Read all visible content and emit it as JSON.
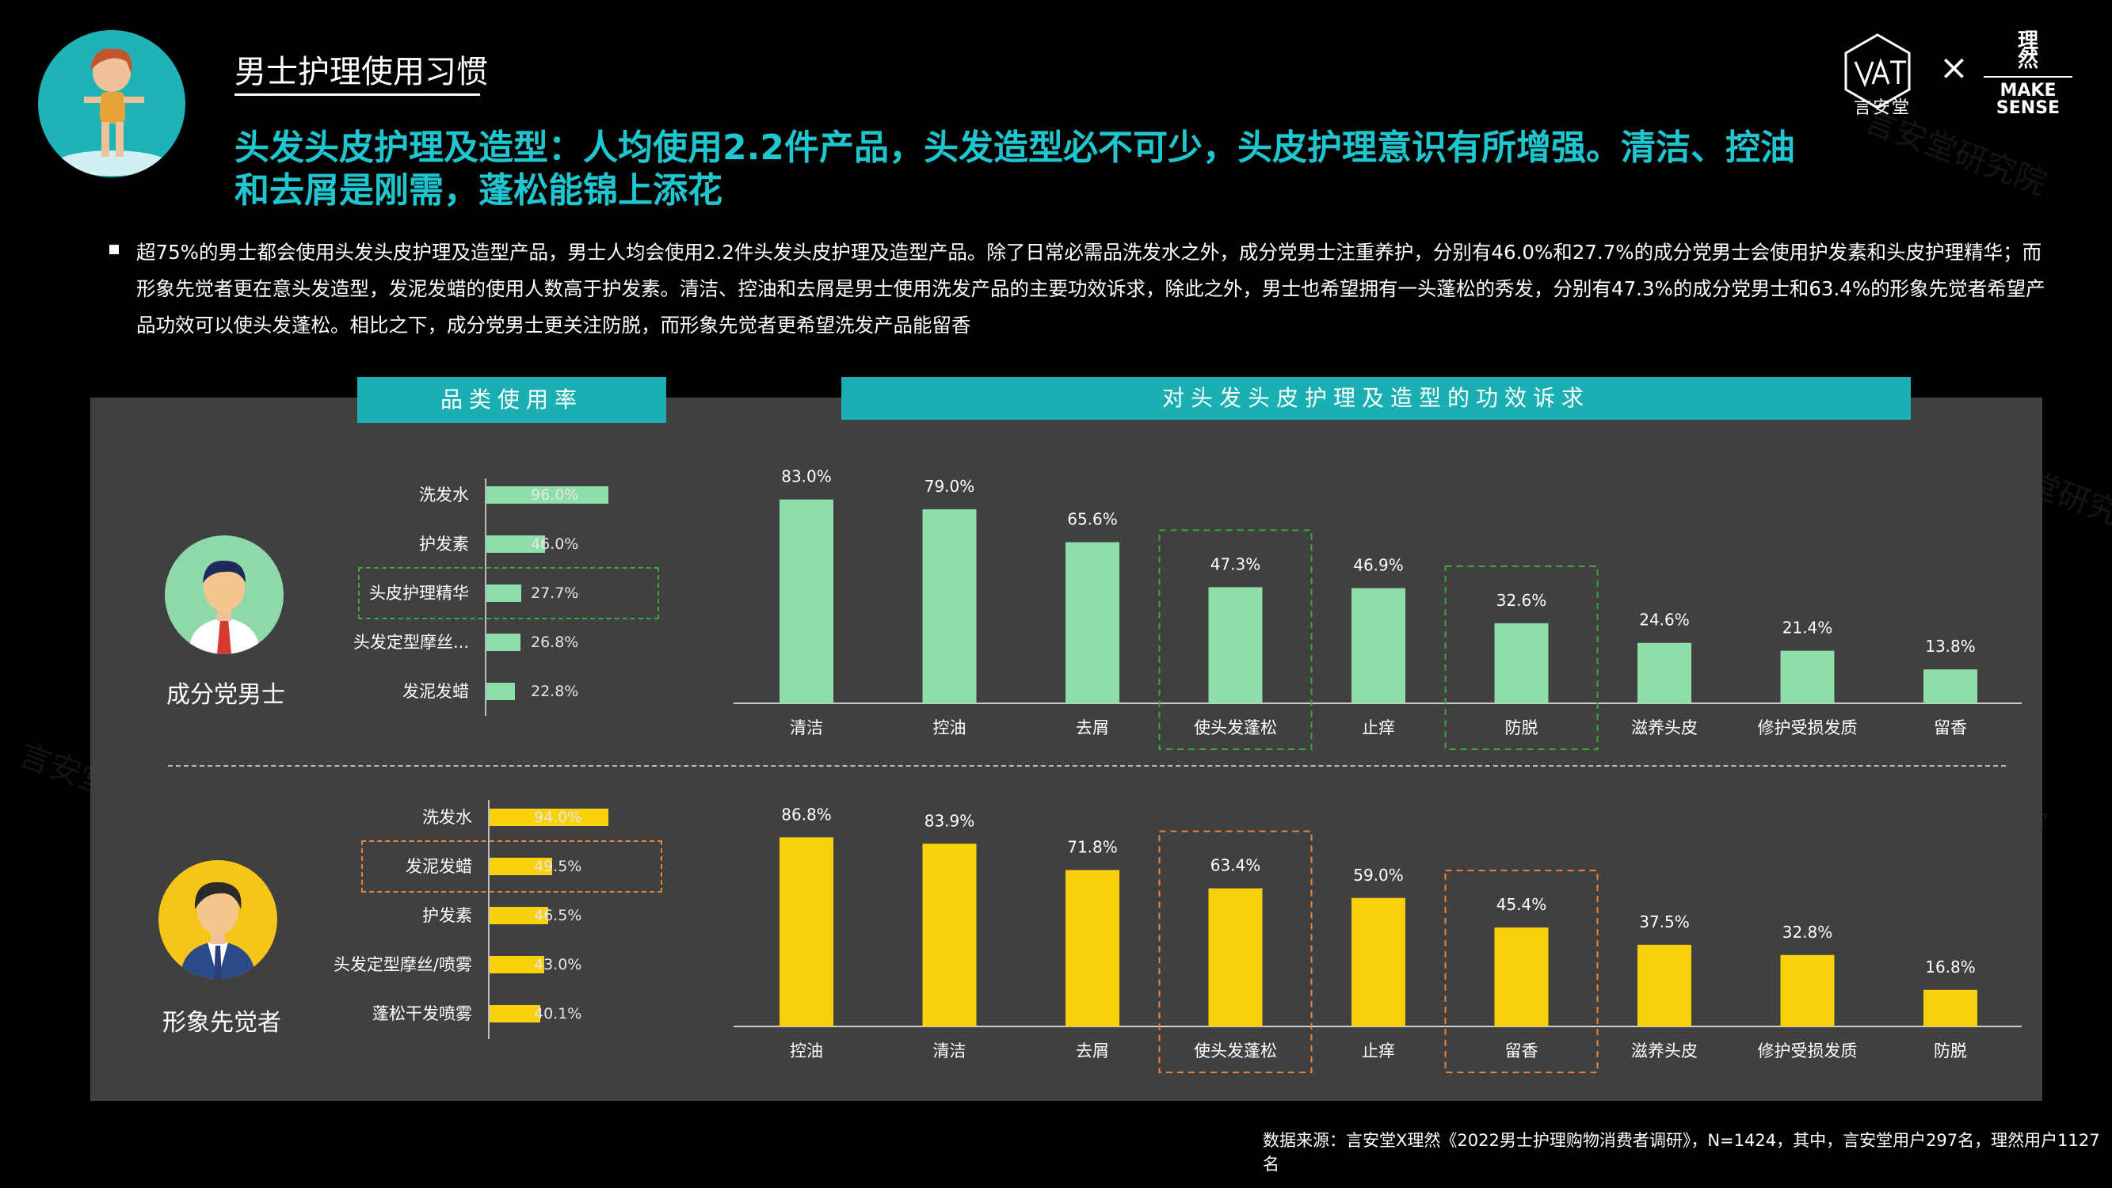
{
  "header": {
    "section_title": "男士护理使用习惯",
    "headline": "头发头皮护理及造型：人均使用2.2件产品，头发造型必不可少，头皮护理意识有所增强。清洁、控油和去屑是刚需，蓬松能锦上添花",
    "logo_left_text": "言安堂",
    "logo_right_cn": "理\n然",
    "logo_right_en": "MAKE\nSENSE",
    "logo_separator": "×"
  },
  "summary": "超75%的男士都会使用头发头皮护理及造型产品，男士人均会使用2.2件头发头皮护理及造型产品。除了日常必需品洗发水之外，成分党男士注重养护，分别有46.0%和27.7%的成分党男士会使用护发素和头皮护理精华；而形象先觉者更在意头发造型，发泥发蜡的使用人数高于护发素。清洁、控油和去屑是男士使用洗发产品的主要功效诉求，除此之外，男士也希望拥有一头蓬松的秀发，分别有47.3%的成分党男士和63.4%的形象先觉者希望产品功效可以使头发蓬松。相比之下，成分党男士更关注防脱，而形象先觉者更希望洗发产品能留香",
  "panel": {
    "left_header": "品类使用率",
    "right_header": "对头发头皮护理及造型的功效诉求"
  },
  "personas": {
    "male": "成分党男士",
    "image": "形象先觉者"
  },
  "watermark": "言安堂研究院",
  "source": "数据来源：言安堂X理然《2022男士护理购物消费者调研》，N=1424，其中，言安堂用户297名，理然用户1127名",
  "colors": {
    "teal": "#1ab0b3",
    "green": "#8fdeaa",
    "yellow": "#f9d10a",
    "panel": "#404040"
  },
  "chart_data": [
    {
      "type": "bar",
      "orientation": "horizontal",
      "group": "成分党男士",
      "categories": [
        "洗发水",
        "护发素",
        "头皮护理精华",
        "头发定型摩丝...",
        "发泥发蜡"
      ],
      "values": [
        96.0,
        46.0,
        27.7,
        26.8,
        22.8
      ],
      "labels": [
        "96.0%",
        "46.0%",
        "27.7%",
        "26.8%",
        "22.8%"
      ],
      "highlight": [
        "头皮护理精华"
      ],
      "color": "#8fdeaa"
    },
    {
      "type": "bar",
      "orientation": "horizontal",
      "group": "形象先觉者",
      "categories": [
        "洗发水",
        "发泥发蜡",
        "护发素",
        "头发定型摩丝/喷雾",
        "蓬松干发喷雾"
      ],
      "values": [
        94.0,
        49.5,
        46.5,
        43.0,
        40.1
      ],
      "labels": [
        "94.0%",
        "49.5%",
        "46.5%",
        "43.0%",
        "40.1%"
      ],
      "highlight": [
        "发泥发蜡"
      ],
      "color": "#f9d10a"
    },
    {
      "type": "bar",
      "group": "成分党男士",
      "categories": [
        "清洁",
        "控油",
        "去屑",
        "使头发蓬松",
        "止痒",
        "防脱",
        "滋养头皮",
        "修护受损发质",
        "留香"
      ],
      "values": [
        83.0,
        79.0,
        65.6,
        47.3,
        46.9,
        32.6,
        24.6,
        21.4,
        13.8
      ],
      "labels": [
        "83.0%",
        "79.0%",
        "65.6%",
        "47.3%",
        "46.9%",
        "32.6%",
        "24.6%",
        "21.4%",
        "13.8%"
      ],
      "highlight": [
        "使头发蓬松",
        "防脱"
      ],
      "color": "#8fdeaa"
    },
    {
      "type": "bar",
      "group": "形象先觉者",
      "categories": [
        "控油",
        "清洁",
        "去屑",
        "使头发蓬松",
        "止痒",
        "留香",
        "滋养头皮",
        "修护受损发质",
        "防脱"
      ],
      "values": [
        86.8,
        83.9,
        71.8,
        63.4,
        59.0,
        45.4,
        37.5,
        32.8,
        16.8
      ],
      "labels": [
        "86.8%",
        "83.9%",
        "71.8%",
        "63.4%",
        "59.0%",
        "45.4%",
        "37.5%",
        "32.8%",
        "16.8%"
      ],
      "highlight": [
        "使头发蓬松",
        "留香"
      ],
      "color": "#f9d10a"
    }
  ]
}
